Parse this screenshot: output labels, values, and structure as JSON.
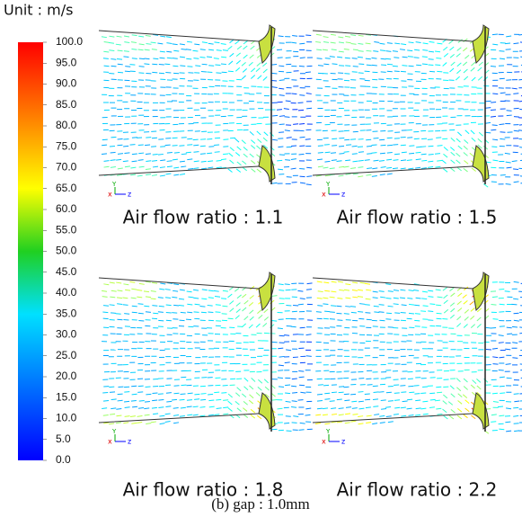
{
  "colorbar": {
    "title": "Unit : m/s",
    "min": 0,
    "max": 100,
    "ticks": [
      {
        "value": 0,
        "label": "0.0"
      },
      {
        "value": 5,
        "label": "5.0"
      },
      {
        "value": 10,
        "label": "10.0"
      },
      {
        "value": 15,
        "label": "15.0"
      },
      {
        "value": 20,
        "label": "20.0"
      },
      {
        "value": 25,
        "label": "25.0"
      },
      {
        "value": 30,
        "label": "30.0"
      },
      {
        "value": 35,
        "label": "35.0"
      },
      {
        "value": 40,
        "label": "40.0"
      },
      {
        "value": 45,
        "label": "45.0"
      },
      {
        "value": 50,
        "label": "50.0"
      },
      {
        "value": 55,
        "label": "55.0"
      },
      {
        "value": 60,
        "label": "60.0"
      },
      {
        "value": 65,
        "label": "65.0"
      },
      {
        "value": 70,
        "label": "70.0"
      },
      {
        "value": 75,
        "label": "75.0"
      },
      {
        "value": 80,
        "label": "80.0"
      },
      {
        "value": 85,
        "label": "85.0"
      },
      {
        "value": 90,
        "label": "90.0"
      },
      {
        "value": 95,
        "label": "95.0"
      },
      {
        "value": 100,
        "label": "100.0"
      }
    ]
  },
  "triad": {
    "y": "Y",
    "x": "x",
    "z": "z"
  },
  "panels": [
    {
      "label": "Air flow ratio : 1.1"
    },
    {
      "label": "Air flow ratio : 1.5"
    },
    {
      "label": "Air flow ratio : 1.8"
    },
    {
      "label": "Air flow ratio : 2.2"
    }
  ],
  "caption": "(b)  gap  :  1.0mm"
}
